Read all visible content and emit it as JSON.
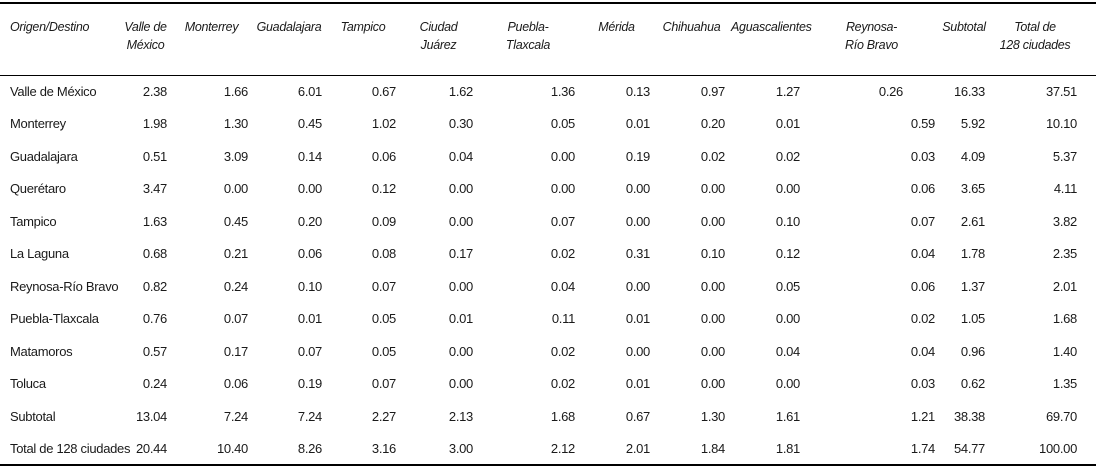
{
  "style": {
    "background": "#ffffff",
    "text_color": "#1a1a1a",
    "rule_color": "#000000"
  },
  "table": {
    "corner_header": "Origen/Destino",
    "columns": [
      "Valle de\nMéxico",
      "Monterrey",
      "Guadalajara",
      "Tampico",
      "Ciudad Juárez",
      "Puebla-\nTlaxcala",
      "Mérida",
      "Chihuahua",
      "Aguascalientes",
      "Reynosa-\nRío Bravo",
      "Subtotal",
      "Total de\n128 ciudades"
    ],
    "rows": [
      {
        "label": "Valle de México",
        "values": [
          "2.38",
          "1.66",
          "6.01",
          "0.67",
          "1.62",
          "1.36",
          "0.13",
          "0.97",
          "1.27",
          "0.26",
          "16.33",
          "37.51"
        ]
      },
      {
        "label": "Monterrey",
        "values": [
          "1.98",
          "1.30",
          "0.45",
          "1.02",
          "0.30",
          "0.05",
          "0.01",
          "0.20",
          "0.01",
          "0.59",
          "5.92",
          "10.10"
        ]
      },
      {
        "label": "Guadalajara",
        "values": [
          "0.51",
          "3.09",
          "0.14",
          "0.06",
          "0.04",
          "0.00",
          "0.19",
          "0.02",
          "0.02",
          "0.03",
          "4.09",
          "5.37"
        ]
      },
      {
        "label": "Querétaro",
        "values": [
          "3.47",
          "0.00",
          "0.00",
          "0.12",
          "0.00",
          "0.00",
          "0.00",
          "0.00",
          "0.00",
          "0.06",
          "3.65",
          "4.11"
        ]
      },
      {
        "label": "Tampico",
        "values": [
          "1.63",
          "0.45",
          "0.20",
          "0.09",
          "0.00",
          "0.07",
          "0.00",
          "0.00",
          "0.10",
          "0.07",
          "2.61",
          "3.82"
        ]
      },
      {
        "label": "La Laguna",
        "values": [
          "0.68",
          "0.21",
          "0.06",
          "0.08",
          "0.17",
          "0.02",
          "0.31",
          "0.10",
          "0.12",
          "0.04",
          "1.78",
          "2.35"
        ]
      },
      {
        "label": "Reynosa-Río Bravo",
        "values": [
          "0.82",
          "0.24",
          "0.10",
          "0.07",
          "0.00",
          "0.04",
          "0.00",
          "0.00",
          "0.05",
          "0.06",
          "1.37",
          "2.01"
        ]
      },
      {
        "label": "Puebla-Tlaxcala",
        "values": [
          "0.76",
          "0.07",
          "0.01",
          "0.05",
          "0.01",
          "0.11",
          "0.01",
          "0.00",
          "0.00",
          "0.02",
          "1.05",
          "1.68"
        ]
      },
      {
        "label": "Matamoros",
        "values": [
          "0.57",
          "0.17",
          "0.07",
          "0.05",
          "0.00",
          "0.02",
          "0.00",
          "0.00",
          "0.04",
          "0.04",
          "0.96",
          "1.40"
        ]
      },
      {
        "label": "Toluca",
        "values": [
          "0.24",
          "0.06",
          "0.19",
          "0.07",
          "0.00",
          "0.02",
          "0.01",
          "0.00",
          "0.00",
          "0.03",
          "0.62",
          "1.35"
        ]
      },
      {
        "label": "Subtotal",
        "values": [
          "13.04",
          "7.24",
          "7.24",
          "2.27",
          "2.13",
          "1.68",
          "0.67",
          "1.30",
          "1.61",
          "1.21",
          "38.38",
          "69.70"
        ]
      },
      {
        "label": "Total de 128 ciudades",
        "values": [
          "20.44",
          "10.40",
          "8.26",
          "3.16",
          "3.00",
          "2.12",
          "2.01",
          "1.84",
          "1.81",
          "1.74",
          "54.77",
          "100.00"
        ]
      }
    ]
  }
}
